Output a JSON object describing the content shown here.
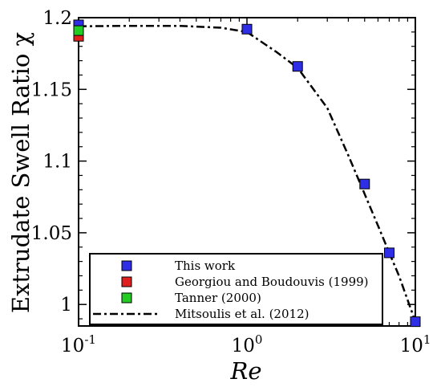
{
  "chart_data": {
    "type": "scatter",
    "xscale": "log",
    "xlim": [
      0.1,
      10
    ],
    "ylim": [
      0.985,
      1.2
    ],
    "xlabel": "Re",
    "ylabel": "Extrudate Swell Ratio χ",
    "xticks": [
      {
        "value": 0.1,
        "base": "10",
        "exp": "-1"
      },
      {
        "value": 1,
        "base": "10",
        "exp": "0"
      },
      {
        "value": 10,
        "base": "10",
        "exp": "1"
      }
    ],
    "yticks": [
      {
        "value": 1.0,
        "label": "1"
      },
      {
        "value": 1.05,
        "label": "1.05"
      },
      {
        "value": 1.1,
        "label": "1.1"
      },
      {
        "value": 1.15,
        "label": "1.15"
      },
      {
        "value": 1.2,
        "label": "1.2"
      }
    ],
    "legend_position": "bottom",
    "series": [
      {
        "name": "This work",
        "marker": "square",
        "color": "#2e2ee6",
        "x": [
          0.1,
          1,
          2,
          5,
          7,
          10
        ],
        "y": [
          1.195,
          1.192,
          1.166,
          1.084,
          1.036,
          0.988
        ]
      },
      {
        "name": "Georgiou and Boudouvis (1999)",
        "marker": "square",
        "color": "#e01f1f",
        "x": [
          0.1
        ],
        "y": [
          1.187
        ]
      },
      {
        "name": "Tanner (2000)",
        "marker": "square",
        "color": "#22cc22",
        "x": [
          0.1
        ],
        "y": [
          1.191
        ]
      },
      {
        "name": "Mitsoulis et al. (2012)",
        "marker": "line",
        "line_style": "dash-dot",
        "color": "#000000",
        "x": [
          0.1,
          0.2,
          0.4,
          0.7,
          1,
          1.5,
          2,
          3,
          4,
          5,
          6,
          7,
          8,
          10
        ],
        "y": [
          1.194,
          1.1943,
          1.1943,
          1.193,
          1.19,
          1.176,
          1.165,
          1.137,
          1.104,
          1.077,
          1.055,
          1.036,
          1.02,
          0.988
        ]
      }
    ]
  }
}
